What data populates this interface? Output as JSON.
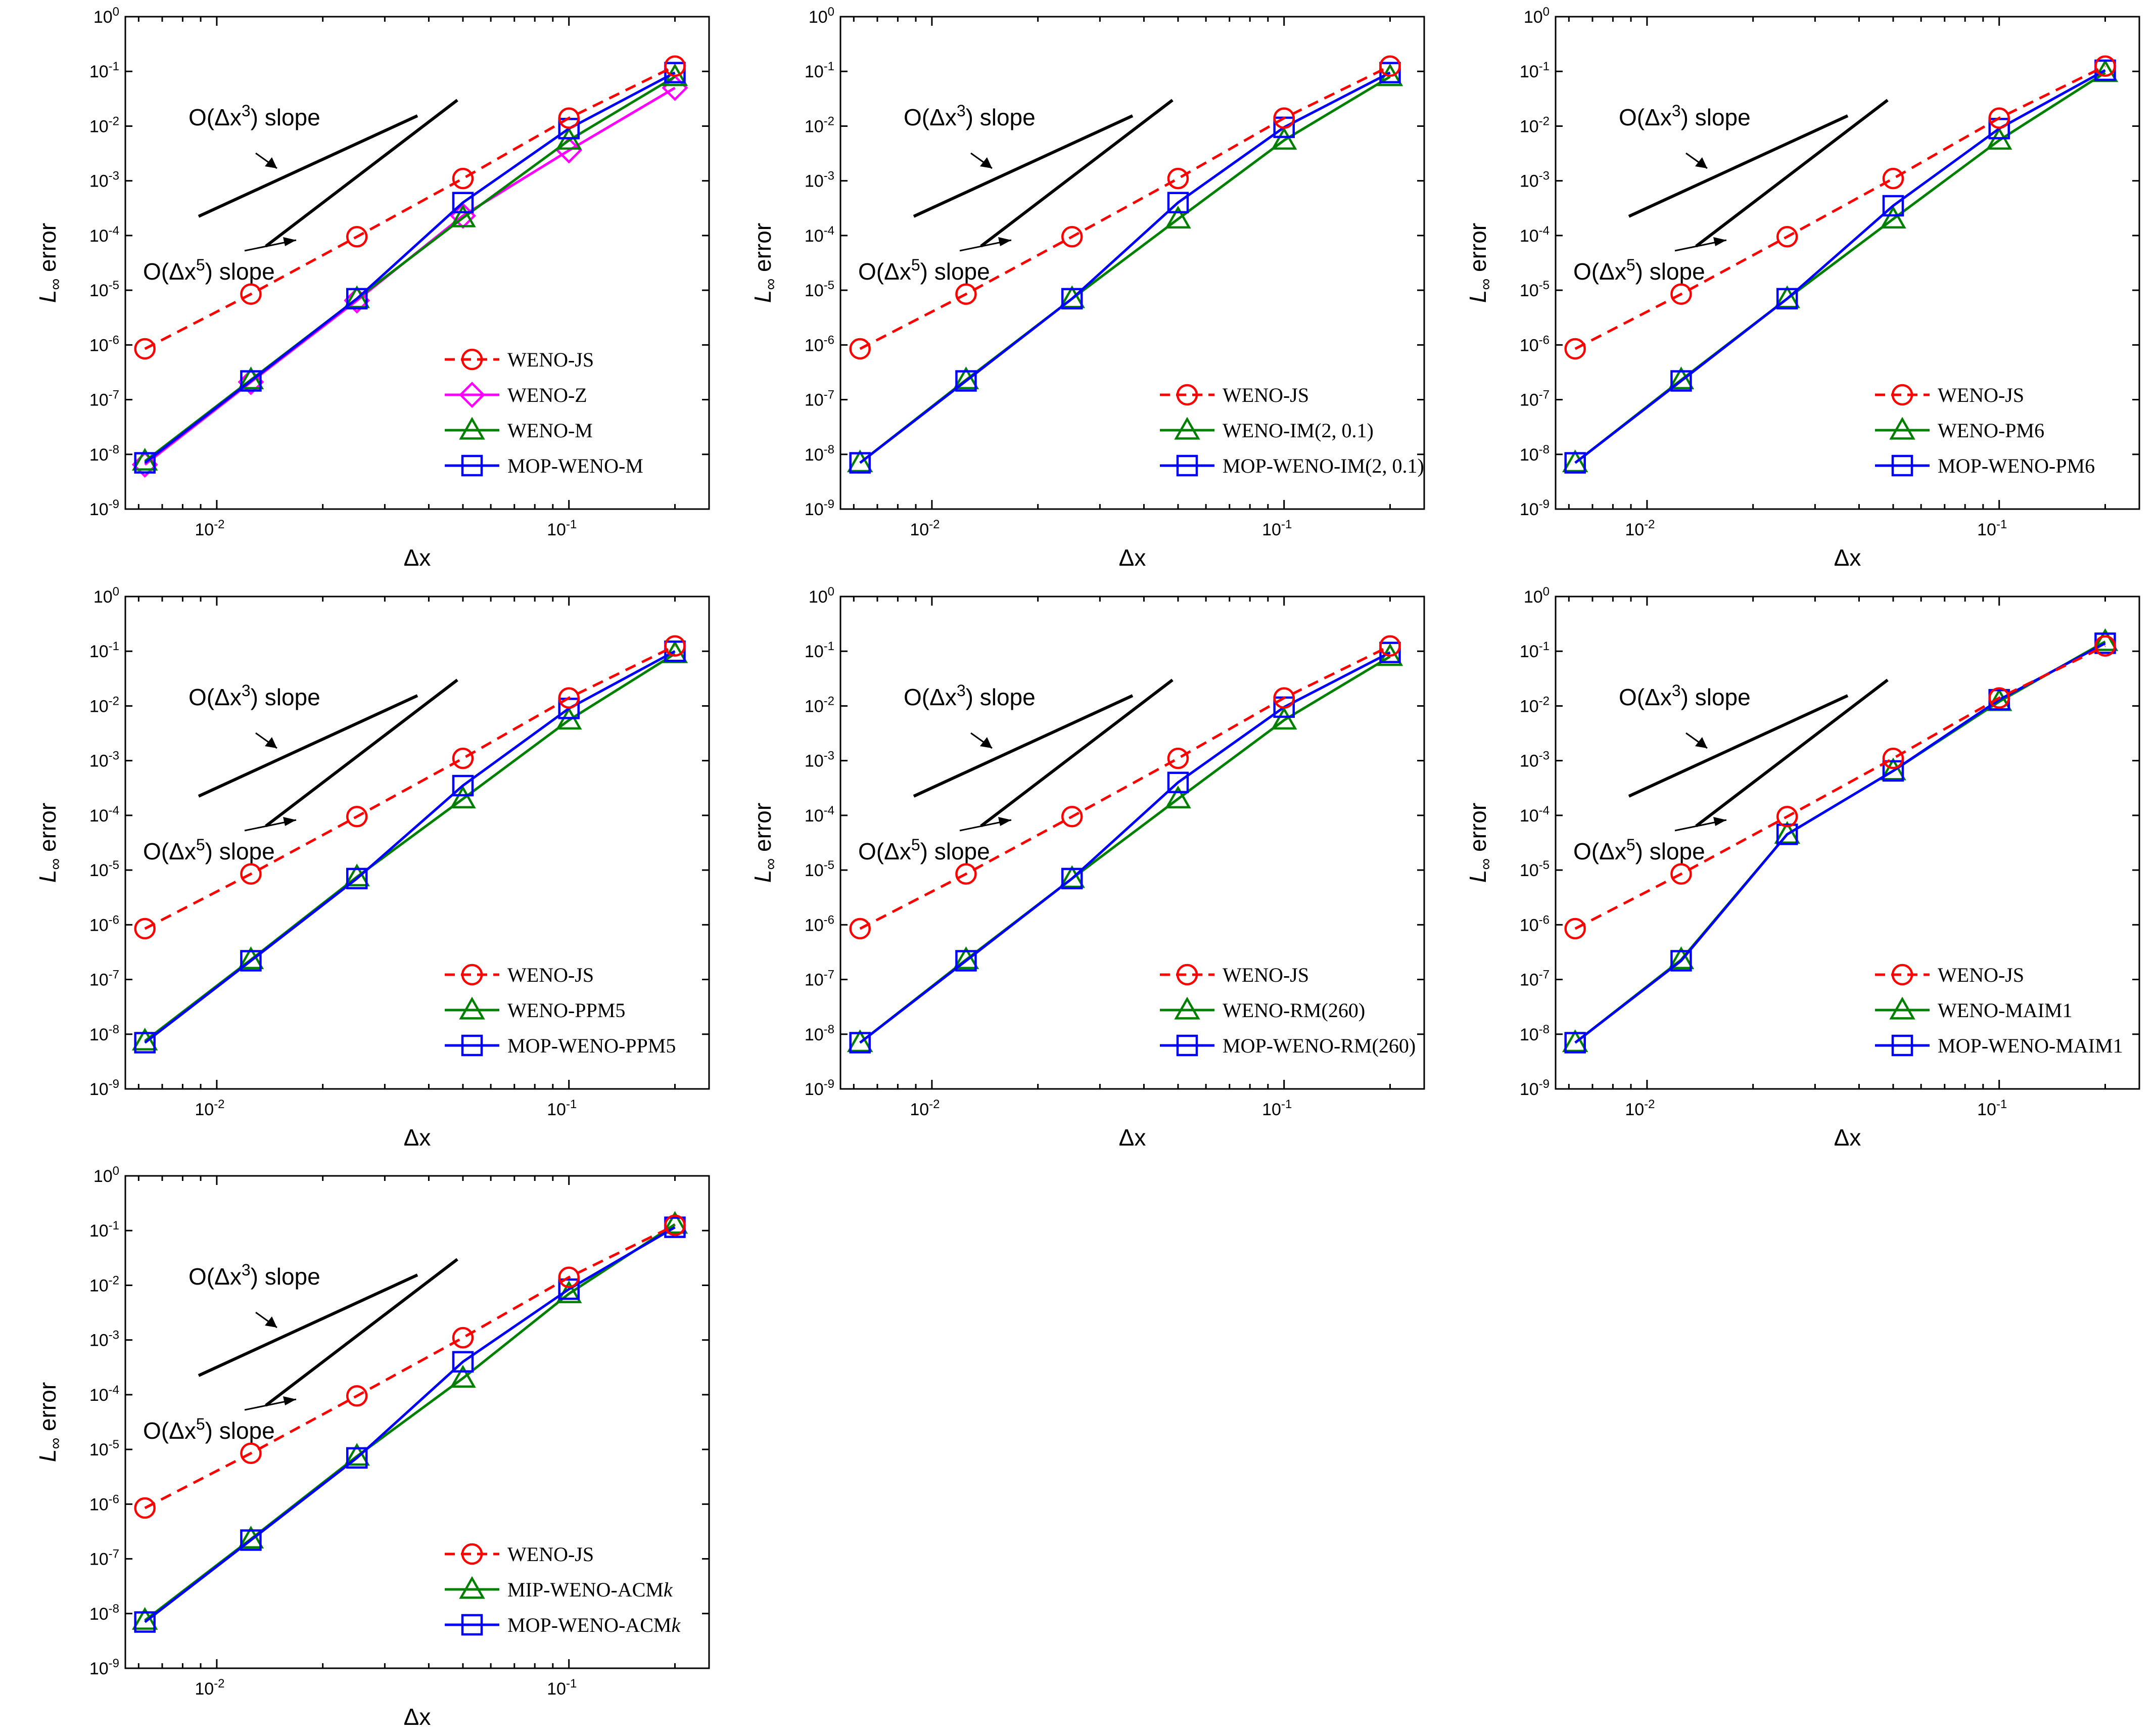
{
  "colors": {
    "weno_js": "#ff0000",
    "weno_z": "#ff00ff",
    "variant": "#008000",
    "mop": "#0000ff",
    "axis": "#000000"
  },
  "common": {
    "xlabel": "Δx",
    "ylabel_main": "L",
    "ylabel_sub": "∞",
    "ylabel_rest": " error",
    "slope3": {
      "pre": "O(Δx",
      "exp": "3",
      "post": ") slope"
    },
    "slope5": {
      "pre": "O(Δx",
      "exp": "5",
      "post": ") slope"
    },
    "y_ticks": [
      {
        "base": "10",
        "exp": "0",
        "value": 1
      },
      {
        "base": "10",
        "exp": "-1",
        "value": 0.1
      },
      {
        "base": "10",
        "exp": "-2",
        "value": 0.01
      },
      {
        "base": "10",
        "exp": "-3",
        "value": 0.001
      },
      {
        "base": "10",
        "exp": "-4",
        "value": 0.0001
      },
      {
        "base": "10",
        "exp": "-5",
        "value": 1e-05
      },
      {
        "base": "10",
        "exp": "-6",
        "value": 1e-06
      },
      {
        "base": "10",
        "exp": "-7",
        "value": 1e-07
      },
      {
        "base": "10",
        "exp": "-8",
        "value": 1e-08
      },
      {
        "base": "10",
        "exp": "-9",
        "value": 1e-09
      }
    ],
    "x_ticks": [
      {
        "base": "10",
        "exp": "-2",
        "value": 0.01
      },
      {
        "base": "10",
        "exp": "-1",
        "value": 0.1
      }
    ]
  },
  "chart_data": [
    {
      "type": "line",
      "title": "",
      "xlabel": "Δx",
      "ylabel": "L∞ error",
      "xscale": "log",
      "yscale": "log",
      "xlim": [
        0.0055,
        0.25
      ],
      "ylim": [
        1e-09,
        1
      ],
      "legend_position": "lower-right",
      "x": [
        0.00625,
        0.0125,
        0.025,
        0.05,
        0.1,
        0.2
      ],
      "series": [
        {
          "name": "WENO-JS",
          "style": "js",
          "values": [
            8.5e-07,
            8.5e-06,
            9.5e-05,
            0.0011,
            0.014,
            0.125
          ]
        },
        {
          "name": "WENO-Z",
          "style": "z",
          "values": [
            6.5e-09,
            2.1e-07,
            6.5e-06,
            0.00023,
            0.0036,
            0.05
          ]
        },
        {
          "name": "WENO-M",
          "style": "variant",
          "values": [
            7.5e-09,
            2.3e-07,
            7e-06,
            0.00021,
            0.0055,
            0.08
          ]
        },
        {
          "name": "MOP-WENO-M",
          "style": "mop",
          "values": [
            7e-09,
            2.2e-07,
            7e-06,
            0.0004,
            0.009,
            0.095
          ]
        }
      ]
    },
    {
      "type": "line",
      "title": "",
      "xlabel": "Δx",
      "ylabel": "L∞ error",
      "xscale": "log",
      "yscale": "log",
      "xlim": [
        0.0055,
        0.25
      ],
      "ylim": [
        1e-09,
        1
      ],
      "legend_position": "lower-right",
      "x": [
        0.00625,
        0.0125,
        0.025,
        0.05,
        0.1,
        0.2
      ],
      "series": [
        {
          "name": "WENO-JS",
          "style": "js",
          "values": [
            8.5e-07,
            8.5e-06,
            9.5e-05,
            0.0011,
            0.014,
            0.125
          ]
        },
        {
          "name": "WENO-IM(2, 0.1)",
          "style": "variant",
          "values": [
            7e-09,
            2.3e-07,
            7e-06,
            0.0002,
            0.0055,
            0.08
          ]
        },
        {
          "name": "MOP-WENO-IM(2, 0.1)",
          "style": "mop",
          "values": [
            7e-09,
            2.2e-07,
            7e-06,
            0.0004,
            0.0095,
            0.095
          ]
        }
      ]
    },
    {
      "type": "line",
      "title": "",
      "xlabel": "Δx",
      "ylabel": "L∞ error",
      "xscale": "log",
      "yscale": "log",
      "xlim": [
        0.0055,
        0.25
      ],
      "ylim": [
        1e-09,
        1
      ],
      "legend_position": "lower-right",
      "x": [
        0.00625,
        0.0125,
        0.025,
        0.05,
        0.1,
        0.2
      ],
      "series": [
        {
          "name": "WENO-JS",
          "style": "js",
          "values": [
            8.5e-07,
            8.5e-06,
            9.5e-05,
            0.0011,
            0.014,
            0.125
          ]
        },
        {
          "name": "WENO-PM6",
          "style": "variant",
          "values": [
            7e-09,
            2.3e-07,
            7e-06,
            0.0002,
            0.0055,
            0.095
          ]
        },
        {
          "name": "MOP-WENO-PM6",
          "style": "mop",
          "values": [
            7e-09,
            2.2e-07,
            7e-06,
            0.00035,
            0.009,
            0.105
          ]
        }
      ]
    },
    {
      "type": "line",
      "title": "",
      "xlabel": "Δx",
      "ylabel": "L∞ error",
      "xscale": "log",
      "yscale": "log",
      "xlim": [
        0.0055,
        0.25
      ],
      "ylim": [
        1e-09,
        1
      ],
      "legend_position": "lower-right",
      "x": [
        0.00625,
        0.0125,
        0.025,
        0.05,
        0.1,
        0.2
      ],
      "series": [
        {
          "name": "WENO-JS",
          "style": "js",
          "values": [
            8.5e-07,
            8.5e-06,
            9.5e-05,
            0.0011,
            0.014,
            0.125
          ]
        },
        {
          "name": "WENO-PPM5",
          "style": "variant",
          "values": [
            7.5e-09,
            2.3e-07,
            7.5e-06,
            0.0002,
            0.0055,
            0.09
          ]
        },
        {
          "name": "MOP-WENO-PPM5",
          "style": "mop",
          "values": [
            7e-09,
            2.2e-07,
            7e-06,
            0.00035,
            0.009,
            0.1
          ]
        }
      ]
    },
    {
      "type": "line",
      "title": "",
      "xlabel": "Δx",
      "ylabel": "L∞ error",
      "xscale": "log",
      "yscale": "log",
      "xlim": [
        0.0055,
        0.25
      ],
      "ylim": [
        1e-09,
        1
      ],
      "legend_position": "lower-right",
      "x": [
        0.00625,
        0.0125,
        0.025,
        0.05,
        0.1,
        0.2
      ],
      "series": [
        {
          "name": "WENO-JS",
          "style": "js",
          "values": [
            8.5e-07,
            8.5e-06,
            9.5e-05,
            0.0011,
            0.014,
            0.125
          ]
        },
        {
          "name": "WENO-RM(260)",
          "style": "variant",
          "values": [
            7e-09,
            2.3e-07,
            7e-06,
            0.0002,
            0.0055,
            0.08
          ]
        },
        {
          "name": "MOP-WENO-RM(260)",
          "style": "mop",
          "values": [
            7e-09,
            2.2e-07,
            7e-06,
            0.0004,
            0.0095,
            0.095
          ]
        }
      ]
    },
    {
      "type": "line",
      "title": "",
      "xlabel": "Δx",
      "ylabel": "L∞ error",
      "xscale": "log",
      "yscale": "log",
      "xlim": [
        0.0055,
        0.25
      ],
      "ylim": [
        1e-09,
        1
      ],
      "legend_position": "lower-right",
      "x": [
        0.00625,
        0.0125,
        0.025,
        0.05,
        0.1,
        0.2
      ],
      "series": [
        {
          "name": "WENO-JS",
          "style": "js",
          "values": [
            8.5e-07,
            8.5e-06,
            9.5e-05,
            0.0011,
            0.014,
            0.125
          ]
        },
        {
          "name": "WENO-MAIM1",
          "style": "variant",
          "values": [
            7e-09,
            2.3e-07,
            4.5e-05,
            0.00065,
            0.012,
            0.15
          ]
        },
        {
          "name": "MOP-WENO-MAIM1",
          "style": "mop",
          "values": [
            7e-09,
            2.2e-07,
            4.5e-05,
            0.00065,
            0.013,
            0.14
          ]
        }
      ]
    },
    {
      "type": "line",
      "title": "",
      "xlabel": "Δx",
      "ylabel": "L∞ error",
      "xscale": "log",
      "yscale": "log",
      "xlim": [
        0.0055,
        0.25
      ],
      "ylim": [
        1e-09,
        1
      ],
      "legend_position": "lower-right",
      "x": [
        0.00625,
        0.0125,
        0.025,
        0.05,
        0.1,
        0.2
      ],
      "series": [
        {
          "name": "WENO-JS",
          "style": "js",
          "values": [
            8.5e-07,
            8.5e-06,
            9.5e-05,
            0.0011,
            0.014,
            0.125
          ]
        },
        {
          "name": "MIP-WENO-ACM",
          "name_italic_suffix": "k",
          "style": "variant",
          "values": [
            7.5e-09,
            2.3e-07,
            7.5e-06,
            0.0002,
            0.007,
            0.13
          ]
        },
        {
          "name": "MOP-WENO-ACM",
          "name_italic_suffix": "k",
          "style": "mop",
          "values": [
            7e-09,
            2.2e-07,
            7e-06,
            0.0004,
            0.0085,
            0.115
          ]
        }
      ]
    }
  ]
}
